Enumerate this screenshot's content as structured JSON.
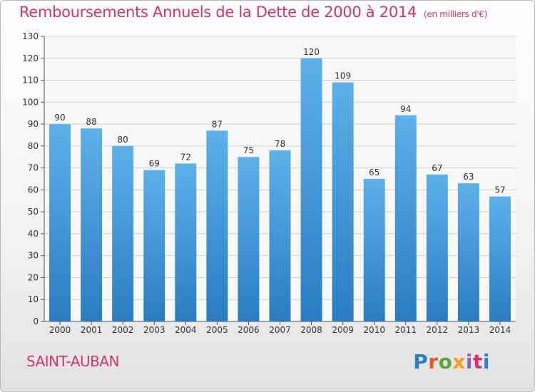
{
  "header": {
    "title": "Remboursements Annuels de la Dette de 2000 à 2014",
    "unit_note": "(en milliers d'€)"
  },
  "footer": {
    "commune": "SAINT-AUBAN",
    "logo_text": "Proxiti"
  },
  "colors": {
    "title": "#d6336c",
    "bar_top": "#5eb0ea",
    "bar_bottom": "#2a7cc2",
    "grid": "#cfcfcf",
    "axis_text": "#333333"
  },
  "chart_data": {
    "type": "bar",
    "title": "Remboursements Annuels de la Dette de 2000 à 2014",
    "subtitle": "(en milliers d'€)",
    "categories": [
      "2000",
      "2001",
      "2002",
      "2003",
      "2004",
      "2005",
      "2006",
      "2007",
      "2008",
      "2009",
      "2010",
      "2011",
      "2012",
      "2013",
      "2014"
    ],
    "values": [
      90,
      88,
      80,
      69,
      72,
      87,
      75,
      78,
      120,
      109,
      65,
      94,
      67,
      63,
      57
    ],
    "ylim": [
      0,
      130
    ],
    "yticks": [
      0,
      10,
      20,
      30,
      40,
      50,
      60,
      70,
      80,
      90,
      100,
      110,
      120,
      130
    ],
    "grid": true,
    "xlabel": "",
    "ylabel": ""
  }
}
